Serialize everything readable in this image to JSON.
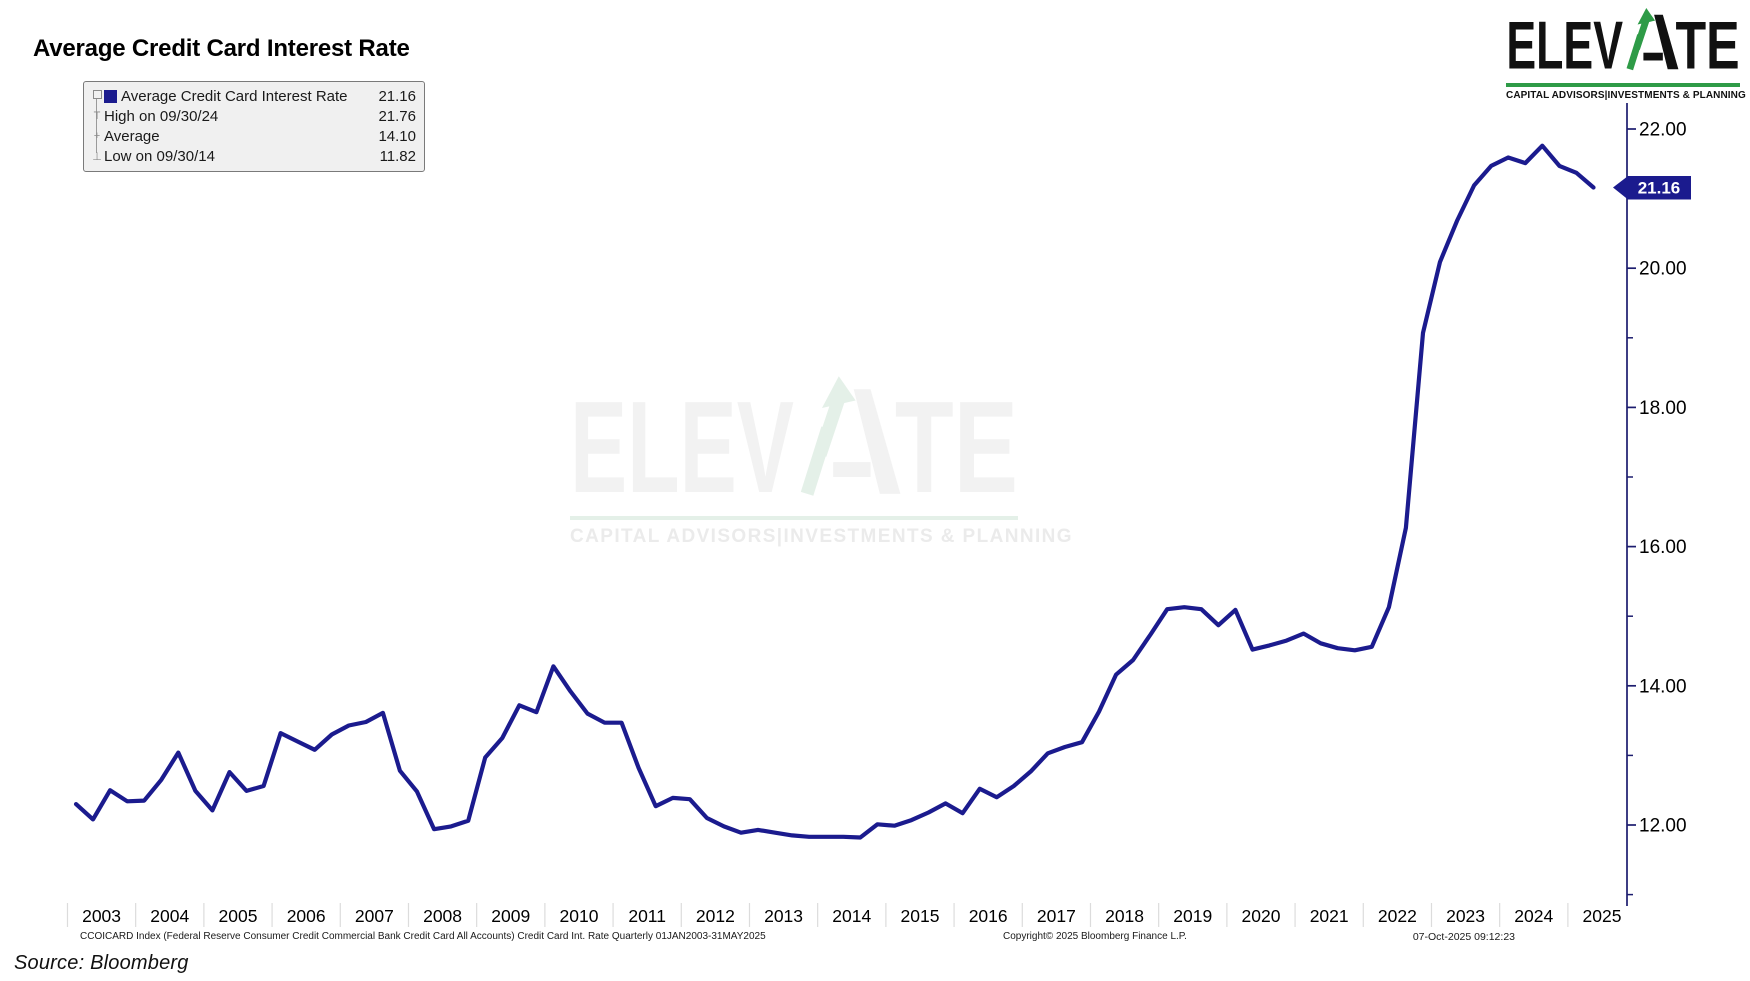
{
  "title": "Average Credit Card Interest Rate",
  "source_note": "Source: Bloomberg",
  "logo": {
    "wordmark": "ELEVATE",
    "wordmark_left": "ELEV",
    "wordmark_right": "TE",
    "tagline": "CAPITAL ADVISORS|INVESTMENTS & PLANNING",
    "green": "#2e9b47",
    "black": "#111111"
  },
  "watermark": {
    "tagline": "CAPITAL ADVISORS|INVESTMENTS & PLANNING",
    "letter_color": "#f2f2f2",
    "arrow_color": "#e4f0e8"
  },
  "legend": {
    "background": "#f0f0f0",
    "rows": [
      {
        "marker": "series-swatch-icon",
        "label": "Average Credit Card Interest Rate",
        "value": "21.16"
      },
      {
        "marker": "high-pin-icon",
        "label": "High on 09/30/24",
        "value": "21.76"
      },
      {
        "marker": "average-pin-icon",
        "label": "Average",
        "value": "14.10"
      },
      {
        "marker": "low-pin-icon",
        "label": "Low on 09/30/14",
        "value": "11.82"
      }
    ],
    "marker_glyphs": {
      "high": "T",
      "average": "+",
      "low": "⊥"
    }
  },
  "last_value_label": "21.16",
  "footer": {
    "left": "CCOICARD Index (Federal Reserve Consumer Credit Commercial Bank Credit Card All Accounts) Credit Card Int. Rate Quarterly 01JAN2003-31MAY2025",
    "center": "Copyright© 2025 Bloomberg Finance L.P.",
    "right": "07-Oct-2025 09:12:23"
  },
  "chart_data": {
    "type": "line",
    "title": "Average Credit Card Interest Rate",
    "series_name": "Average Credit Card Interest Rate",
    "frequency": "quarterly",
    "date_range": "01JAN2003-31MAY2025",
    "line_color": "#1b1b8e",
    "axis_color": "#1c1c6e",
    "grid": false,
    "legend_position": "top-left",
    "ylim": [
      10.8,
      22.4
    ],
    "y_ticks": [
      12,
      14,
      16,
      18,
      20,
      22
    ],
    "y_tick_labels": [
      "12.00",
      "14.00",
      "16.00",
      "18.00",
      "20.00",
      "22.00"
    ],
    "y_minor_ticks": [
      11,
      13,
      15,
      17,
      19,
      21
    ],
    "x_tick_labels": [
      "2003",
      "2004",
      "2005",
      "2006",
      "2007",
      "2008",
      "2009",
      "2010",
      "2011",
      "2012",
      "2013",
      "2014",
      "2015",
      "2016",
      "2017",
      "2018",
      "2019",
      "2020",
      "2021",
      "2022",
      "2023",
      "2024",
      "2025"
    ],
    "stats": {
      "last": 21.16,
      "high_date": "09/30/24",
      "high": 21.76,
      "average": 14.1,
      "low_date": "09/30/14",
      "low": 11.82
    },
    "x": [
      "2003-03-31",
      "2003-06-30",
      "2003-09-30",
      "2003-12-31",
      "2004-03-31",
      "2004-06-30",
      "2004-09-30",
      "2004-12-31",
      "2005-03-31",
      "2005-06-30",
      "2005-09-30",
      "2005-12-31",
      "2006-03-31",
      "2006-06-30",
      "2006-09-30",
      "2006-12-31",
      "2007-03-31",
      "2007-06-30",
      "2007-09-30",
      "2007-12-31",
      "2008-03-31",
      "2008-06-30",
      "2008-09-30",
      "2008-12-31",
      "2009-03-31",
      "2009-06-30",
      "2009-09-30",
      "2009-12-31",
      "2010-03-31",
      "2010-06-30",
      "2010-09-30",
      "2010-12-31",
      "2011-03-31",
      "2011-06-30",
      "2011-09-30",
      "2011-12-31",
      "2012-03-31",
      "2012-06-30",
      "2012-09-30",
      "2012-12-31",
      "2013-03-31",
      "2013-06-30",
      "2013-09-30",
      "2013-12-31",
      "2014-03-31",
      "2014-06-30",
      "2014-09-30",
      "2014-12-31",
      "2015-03-31",
      "2015-06-30",
      "2015-09-30",
      "2015-12-31",
      "2016-03-31",
      "2016-06-30",
      "2016-09-30",
      "2016-12-31",
      "2017-03-31",
      "2017-06-30",
      "2017-09-30",
      "2017-12-31",
      "2018-03-31",
      "2018-06-30",
      "2018-09-30",
      "2018-12-31",
      "2019-03-31",
      "2019-06-30",
      "2019-09-30",
      "2019-12-31",
      "2020-03-31",
      "2020-06-30",
      "2020-09-30",
      "2020-12-31",
      "2021-03-31",
      "2021-06-30",
      "2021-09-30",
      "2021-12-31",
      "2022-03-31",
      "2022-06-30",
      "2022-09-30",
      "2022-12-31",
      "2023-03-31",
      "2023-06-30",
      "2023-09-30",
      "2023-12-31",
      "2024-03-31",
      "2024-06-30",
      "2024-09-30",
      "2024-12-31",
      "2025-03-31",
      "2025-05-31"
    ],
    "values": [
      12.3,
      12.08,
      12.5,
      12.34,
      12.35,
      12.65,
      13.04,
      12.49,
      12.21,
      12.76,
      12.49,
      12.56,
      13.32,
      13.2,
      13.08,
      13.3,
      13.43,
      13.48,
      13.61,
      12.78,
      12.48,
      11.94,
      11.98,
      12.06,
      12.97,
      13.25,
      13.72,
      13.62,
      14.28,
      13.92,
      13.6,
      13.47,
      13.47,
      12.82,
      12.27,
      12.39,
      12.37,
      12.1,
      11.98,
      11.89,
      11.93,
      11.89,
      11.85,
      11.83,
      11.83,
      11.83,
      11.82,
      12.01,
      11.99,
      12.07,
      12.18,
      12.31,
      12.17,
      12.52,
      12.4,
      12.56,
      12.77,
      13.03,
      13.12,
      13.19,
      13.63,
      14.16,
      14.37,
      14.73,
      15.1,
      15.13,
      15.1,
      14.87,
      15.09,
      14.52,
      14.58,
      14.65,
      14.75,
      14.61,
      14.54,
      14.51,
      14.56,
      15.13,
      16.27,
      19.07,
      20.09,
      20.68,
      21.19,
      21.47,
      21.59,
      21.51,
      21.76,
      21.47,
      21.37,
      21.16
    ]
  }
}
